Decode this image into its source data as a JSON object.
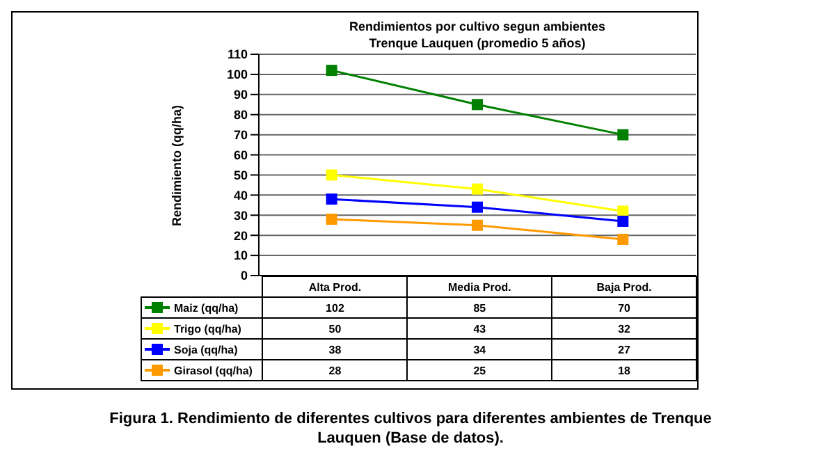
{
  "chart_data": {
    "type": "line",
    "title": "Rendimientos por cultivo segun ambientes\nTrenque Lauquen (promedio 5 años)",
    "ylabel": "Rendimiento (qq/ha)",
    "categories": [
      "Alta Prod.",
      "Media Prod.",
      "Baja Prod."
    ],
    "series": [
      {
        "name": "Maiz (qq/ha)",
        "color": "#008000",
        "values": [
          102,
          85,
          70
        ]
      },
      {
        "name": "Trigo (qq/ha)",
        "color": "#ffff00",
        "values": [
          50,
          43,
          32
        ]
      },
      {
        "name": "Soja (qq/ha)",
        "color": "#0000ff",
        "values": [
          38,
          34,
          27
        ]
      },
      {
        "name": "Girasol (qq/ha)",
        "color": "#ff9900",
        "values": [
          28,
          25,
          18
        ]
      }
    ],
    "ylim": [
      0,
      110
    ],
    "yticks": [
      0,
      10,
      20,
      30,
      40,
      50,
      60,
      70,
      80,
      90,
      100,
      110
    ],
    "grid": "y",
    "marker": "square",
    "legend": "bottom",
    "data_labels": true,
    "annotations": [
      "Figura 1. Rendimiento de diferentes cultivos para diferentes ambientes de Trenque Lauquen (Base de datos)."
    ]
  }
}
